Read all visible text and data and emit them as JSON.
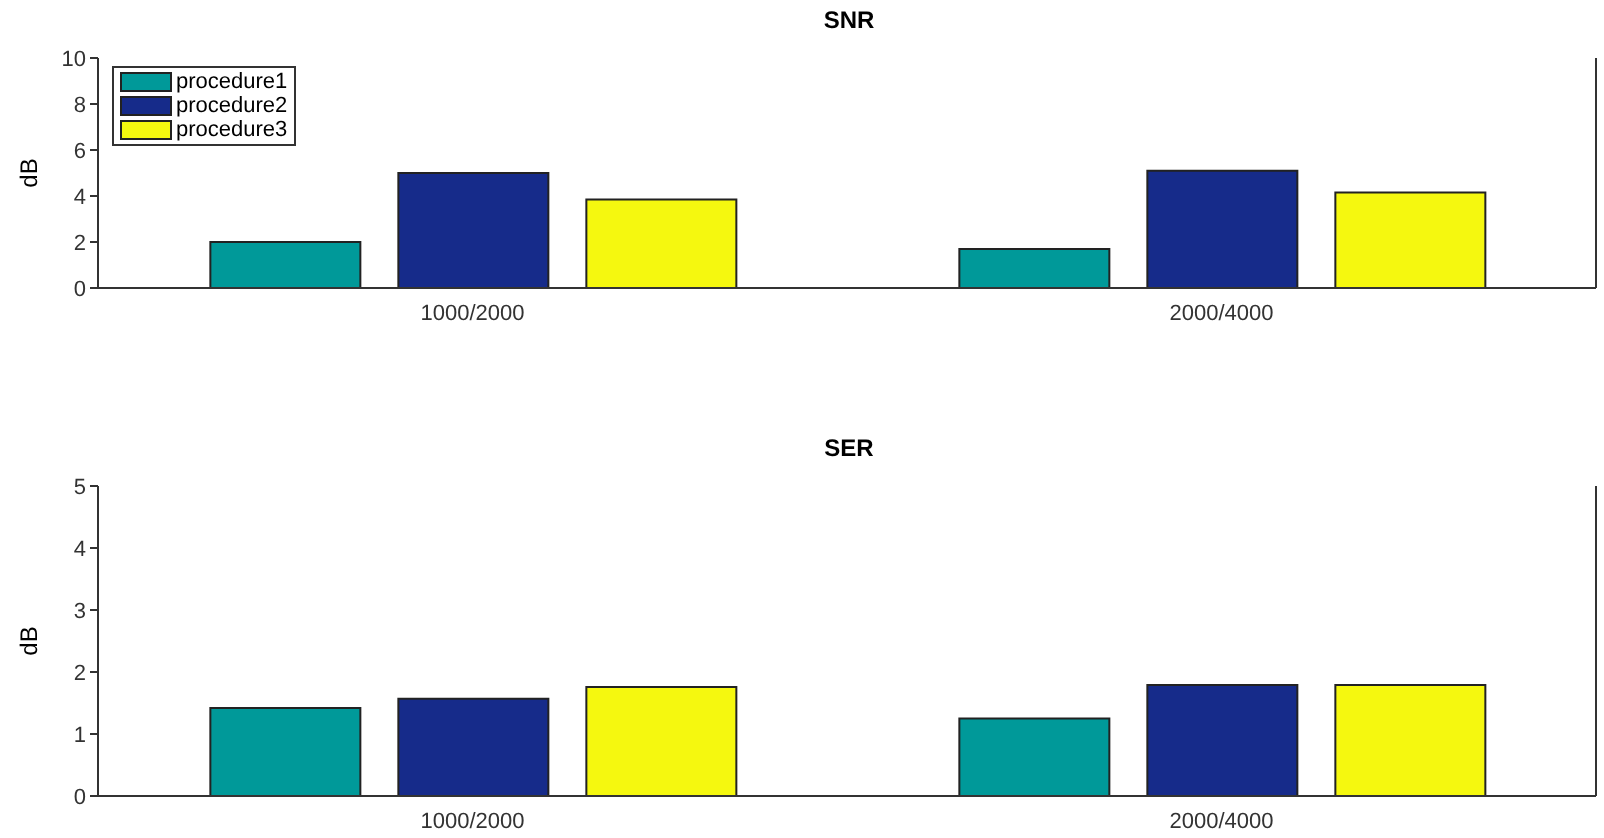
{
  "chart_data": [
    {
      "type": "bar",
      "title": "SNR",
      "ylabel": "dB",
      "categories": [
        "1000/2000",
        "2000/4000"
      ],
      "series": [
        {
          "name": "procedure1",
          "color": "#009999",
          "values": [
            2.0,
            1.7
          ]
        },
        {
          "name": "procedure2",
          "color": "#162b8a",
          "values": [
            5.0,
            5.1
          ]
        },
        {
          "name": "procedure3",
          "color": "#f5f80f",
          "values": [
            3.85,
            4.15
          ]
        }
      ],
      "ylim": [
        0,
        10
      ],
      "yticks": [
        0,
        2,
        4,
        6,
        8,
        10
      ],
      "grid": false,
      "legend": "top left"
    },
    {
      "type": "bar",
      "title": "SER",
      "ylabel": "dB",
      "categories": [
        "1000/2000",
        "2000/4000"
      ],
      "series": [
        {
          "color": "#009999",
          "values": [
            1.42,
            1.25
          ]
        },
        {
          "color": "#162b8a",
          "values": [
            1.57,
            1.79
          ]
        },
        {
          "color": "#f5f80f",
          "values": [
            1.76,
            1.79
          ]
        }
      ],
      "ylim": [
        0,
        5
      ],
      "yticks": [
        0,
        1,
        2,
        3,
        4,
        5
      ],
      "grid": false,
      "legend": false
    }
  ]
}
